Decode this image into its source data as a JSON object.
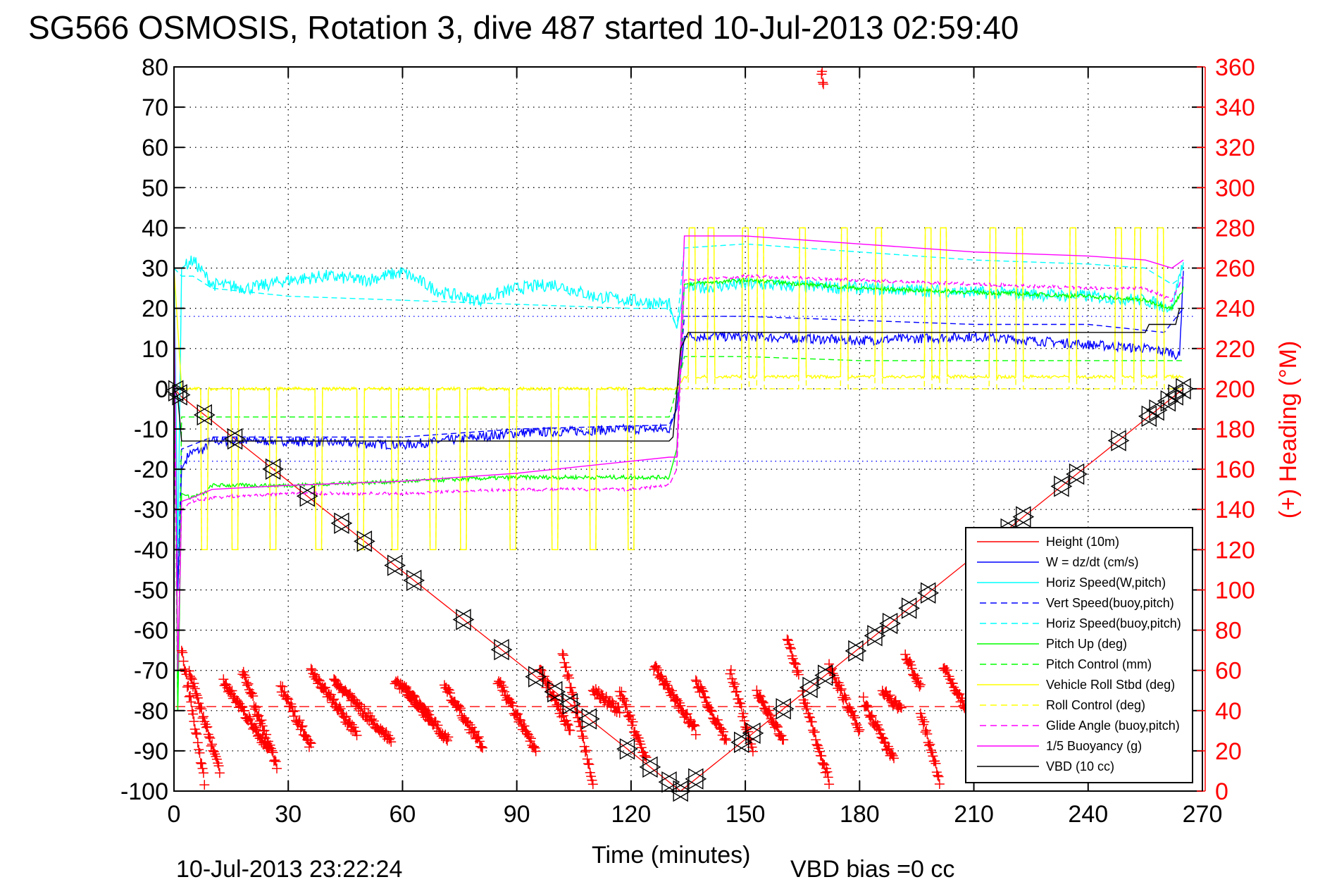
{
  "chart_data": {
    "type": "line",
    "title": "SG566 OSMOSIS, Rotation 3, dive 487 started 10-Jul-2013 02:59:40",
    "xlabel": "Time (minutes)",
    "ylabel": "",
    "ylabel_right": "(+) Heading (°M)",
    "xlim": [
      0,
      270
    ],
    "ylim": [
      -100,
      80
    ],
    "ylim_right": [
      0,
      360
    ],
    "x_ticks": [
      "0",
      "30",
      "60",
      "90",
      "120",
      "150",
      "180",
      "210",
      "240",
      "270"
    ],
    "y_ticks": [
      "80",
      "70",
      "60",
      "50",
      "40",
      "30",
      "20",
      "10",
      "0",
      "-10",
      "-20",
      "-30",
      "-40",
      "-50",
      "-60",
      "-70",
      "-80",
      "-90",
      "-100"
    ],
    "y_ticks_right": [
      "360",
      "340",
      "320",
      "300",
      "280",
      "260",
      "240",
      "220",
      "200",
      "180",
      "160",
      "140",
      "120",
      "100",
      "80",
      "60",
      "40",
      "20",
      "0"
    ],
    "grid": true,
    "legend_position": "bottom-right",
    "reference_lines": [
      {
        "name": "vert-speed-limit-upper",
        "y": 18,
        "color": "#0000ff",
        "style": "dotted"
      },
      {
        "name": "vert-speed-limit-lower",
        "y": -18,
        "color": "#0000ff",
        "style": "dotted"
      },
      {
        "name": "mean-heading",
        "y_right": 42,
        "color": "#ff0000",
        "style": "dashed"
      }
    ],
    "series": [
      {
        "name": "Height (10m)",
        "color": "#ff0000",
        "style": "solid",
        "x": [
          0,
          2,
          133,
          265
        ],
        "y": [
          0,
          -2,
          -100,
          0
        ]
      },
      {
        "name": "W = dz/dt (cm/s)",
        "color": "#0000ff",
        "style": "solid",
        "x": [
          0,
          1,
          2,
          4,
          8,
          10,
          30,
          60,
          90,
          120,
          130,
          132,
          134,
          150,
          180,
          210,
          240,
          255,
          262,
          264,
          265
        ],
        "y": [
          5,
          -50,
          -20,
          -16,
          -15,
          -13,
          -13,
          -14,
          -11,
          -10,
          -10,
          -5,
          13,
          13,
          12,
          13,
          11,
          10,
          9,
          8,
          30
        ]
      },
      {
        "name": "Horiz Speed(W,pitch)",
        "color": "#00ffff",
        "style": "solid",
        "x": [
          0,
          1,
          2,
          5,
          10,
          20,
          30,
          40,
          50,
          60,
          70,
          80,
          90,
          100,
          110,
          120,
          130,
          132,
          134,
          150,
          180,
          210,
          240,
          255,
          262,
          265
        ],
        "y": [
          35,
          -40,
          30,
          32,
          26,
          25,
          27,
          28,
          27,
          29,
          24,
          22,
          25,
          26,
          23,
          22,
          21,
          15,
          25,
          26,
          25,
          24,
          23,
          22,
          20,
          32
        ]
      },
      {
        "name": "Vert Speed(buoy,pitch)",
        "color": "#0000ff",
        "style": "dashed",
        "x": [
          0,
          1,
          2,
          10,
          60,
          90,
          130,
          132,
          134,
          150,
          180,
          210,
          240,
          260,
          265
        ],
        "y": [
          0,
          -50,
          -15,
          -12,
          -12,
          -10,
          -9,
          -5,
          18,
          18,
          17,
          16,
          16,
          14,
          20
        ]
      },
      {
        "name": "Horiz Speed(buoy,pitch)",
        "color": "#00ffff",
        "style": "dashed",
        "x": [
          0,
          2,
          5,
          10,
          30,
          60,
          90,
          120,
          130,
          132,
          134,
          150,
          180,
          210,
          240,
          255,
          262,
          265
        ],
        "y": [
          30,
          28,
          28,
          25,
          23,
          22,
          21,
          20,
          20,
          15,
          35,
          36,
          34,
          32,
          31,
          30,
          26,
          28
        ]
      },
      {
        "name": "Pitch Up (deg)",
        "color": "#00ff00",
        "style": "solid",
        "x": [
          0,
          1,
          2,
          4,
          8,
          10,
          30,
          60,
          90,
          120,
          130,
          132,
          134,
          150,
          180,
          210,
          240,
          255,
          262,
          265
        ],
        "y": [
          20,
          -80,
          -26,
          -27,
          -26,
          -24,
          -24,
          -23,
          -22,
          -22,
          -22,
          -15,
          26,
          27,
          25,
          24,
          23,
          22,
          20,
          25
        ]
      },
      {
        "name": "Pitch Control (mm)",
        "color": "#00ff00",
        "style": "dashed",
        "x": [
          0,
          1,
          2,
          130,
          132,
          134,
          150,
          180,
          210,
          240,
          265
        ],
        "y": [
          0,
          -80,
          -7,
          -7,
          0,
          8,
          8,
          7,
          7,
          7,
          7
        ]
      },
      {
        "name": "Vehicle Roll Stbd (deg)",
        "color": "#ffff00",
        "style": "solid",
        "x": [
          0,
          2,
          130,
          132,
          134,
          265
        ],
        "y": [
          30,
          0,
          0,
          0,
          3,
          3
        ]
      },
      {
        "name": "Roll Control (deg)",
        "color": "#ffff00",
        "style": "dashed",
        "x": [
          0,
          2,
          130,
          132,
          134,
          265
        ],
        "y": [
          0,
          0,
          0,
          0,
          0,
          0
        ]
      },
      {
        "name": "Glide Angle (buoy,pitch)",
        "color": "#ff00ff",
        "style": "dashed",
        "x": [
          0,
          1,
          2,
          5,
          10,
          30,
          60,
          90,
          120,
          130,
          132,
          134,
          150,
          180,
          210,
          240,
          255,
          262,
          265
        ],
        "y": [
          0,
          -70,
          -30,
          -28,
          -27,
          -26,
          -26,
          -25,
          -25,
          -24,
          -20,
          27,
          28,
          27,
          26,
          25,
          25,
          22,
          28
        ]
      },
      {
        "name": "1/5 Buoyancy (g)",
        "color": "#ff00ff",
        "style": "solid",
        "x": [
          0,
          1,
          2,
          5,
          10,
          30,
          60,
          90,
          120,
          130,
          132,
          134,
          150,
          180,
          210,
          240,
          255,
          262,
          265
        ],
        "y": [
          30,
          -70,
          -28,
          -27,
          -25,
          -24,
          -23,
          -21,
          -18,
          -17,
          -17,
          38,
          38,
          36,
          34,
          33,
          32,
          30,
          32
        ]
      },
      {
        "name": "VBD (10 cc)",
        "color": "#000000",
        "style": "solid",
        "x": [
          0,
          1,
          2,
          130,
          131,
          133,
          135,
          255,
          256,
          263,
          264,
          265
        ],
        "y": [
          0,
          -2,
          -13,
          -13,
          -12,
          10,
          14,
          14,
          16,
          16,
          20,
          20
        ]
      }
    ],
    "roll_spikes": {
      "dive_times": [
        8,
        16,
        26,
        38,
        49,
        58,
        68,
        76,
        89,
        100,
        110,
        120
      ],
      "dive_value": -40,
      "climb_times": [
        136,
        141,
        150,
        154,
        165,
        176,
        185,
        198,
        202,
        215,
        222,
        236,
        248,
        253,
        259
      ],
      "climb_value": 40
    },
    "height_markers_minutes": [
      0.5,
      1.5,
      8,
      16,
      26,
      35,
      44,
      50,
      58,
      63,
      76,
      86,
      95,
      100,
      104,
      109,
      119,
      125,
      130,
      133,
      137,
      149,
      152,
      160,
      167,
      171,
      179,
      184,
      188,
      193,
      198,
      219,
      223,
      233,
      237,
      248,
      256,
      258,
      261,
      263,
      265
    ],
    "heading": {
      "name": "(+) Heading",
      "axis": "right",
      "marker": "+",
      "color": "#ff0000",
      "sawtooth_segments": [
        {
          "t0": 2,
          "t1": 8,
          "h0": 70,
          "h1": 5
        },
        {
          "t0": 4,
          "t1": 12,
          "h0": 60,
          "h1": 10
        },
        {
          "t0": 13,
          "t1": 25,
          "h0": 55,
          "h1": 20
        },
        {
          "t0": 18,
          "t1": 27,
          "h0": 60,
          "h1": 12
        },
        {
          "t0": 28,
          "t1": 36,
          "h0": 52,
          "h1": 22
        },
        {
          "t0": 36,
          "t1": 48,
          "h0": 60,
          "h1": 28
        },
        {
          "t0": 42,
          "t1": 57,
          "h0": 55,
          "h1": 25
        },
        {
          "t0": 58,
          "t1": 67,
          "h0": 55,
          "h1": 38
        },
        {
          "t0": 61,
          "t1": 72,
          "h0": 50,
          "h1": 25
        },
        {
          "t0": 71,
          "t1": 81,
          "h0": 52,
          "h1": 22
        },
        {
          "t0": 85,
          "t1": 95,
          "h0": 55,
          "h1": 20
        },
        {
          "t0": 96,
          "t1": 104,
          "h0": 60,
          "h1": 30
        },
        {
          "t0": 102,
          "t1": 110,
          "h0": 68,
          "h1": 5
        },
        {
          "t0": 110,
          "t1": 117,
          "h0": 50,
          "h1": 40
        },
        {
          "t0": 117,
          "t1": 124,
          "h0": 50,
          "h1": 15
        },
        {
          "t0": 126,
          "t1": 137,
          "h0": 62,
          "h1": 30
        },
        {
          "t0": 137,
          "t1": 145,
          "h0": 55,
          "h1": 25
        },
        {
          "t0": 146,
          "t1": 152,
          "h0": 60,
          "h1": 20
        },
        {
          "t0": 153,
          "t1": 160,
          "h0": 50,
          "h1": 25
        },
        {
          "t0": 161,
          "t1": 164,
          "h0": 75,
          "h1": 58
        },
        {
          "t0": 165,
          "t1": 172,
          "h0": 48,
          "h1": 5
        },
        {
          "t0": 170,
          "t1": 170.5,
          "h0": 358,
          "h1": 352
        },
        {
          "t0": 172,
          "t1": 180,
          "h0": 62,
          "h1": 30
        },
        {
          "t0": 181,
          "t1": 189,
          "h0": 45,
          "h1": 15
        },
        {
          "t0": 186,
          "t1": 191,
          "h0": 50,
          "h1": 40
        },
        {
          "t0": 192,
          "t1": 196,
          "h0": 68,
          "h1": 52
        },
        {
          "t0": 196,
          "t1": 201,
          "h0": 40,
          "h1": 5
        },
        {
          "t0": 202,
          "t1": 208,
          "h0": 62,
          "h1": 40
        }
      ]
    }
  },
  "footer": {
    "date": "10-Jul-2013 23:22:24",
    "vbd_bias": "VBD bias =0 cc"
  }
}
